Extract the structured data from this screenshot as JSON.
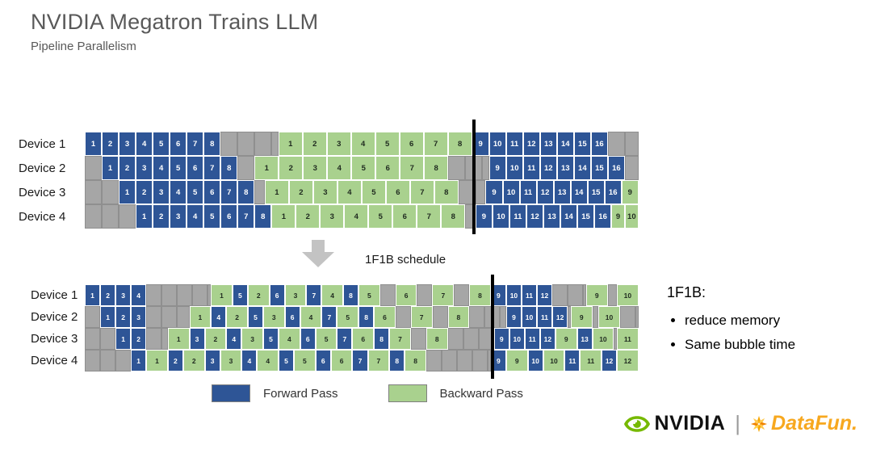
{
  "slide": {
    "title": "NVIDIA Megatron Trains LLM",
    "subtitle": "Pipeline Parallelism"
  },
  "arrow_label": "1F1B schedule",
  "notes": {
    "heading": "1F1B:",
    "bullets": [
      "reduce memory",
      "Same bubble time"
    ]
  },
  "legend": [
    {
      "label": "Forward Pass",
      "color": "#2E5596"
    },
    {
      "label": "Backward Pass",
      "color": "#A9D18E"
    }
  ],
  "colors": {
    "forward": "#2E5596",
    "backward": "#A9D18E",
    "idle": "#A6A6A6",
    "idle_border": "#8F8F8F",
    "flush_line": "#000000"
  },
  "footer": {
    "nvidia": "NVIDIA",
    "separator": "|",
    "datafun": "DataFun.",
    "nvidia_logo_color": "#76B900",
    "datafun_color": "#F7A600"
  },
  "icons": [
    "down-arrow-icon",
    "nvidia-eye-icon",
    "datafun-sparkle-icon"
  ],
  "chart_data": [
    {
      "type": "gantt-schedule",
      "name": "default pipeline schedule (before 1F1B)",
      "cell_legend": {
        "f": "Forward Pass",
        "b": "Backward Pass",
        "i": "idle bubble"
      },
      "total_units": 32.6,
      "flush_line_units": 22.8,
      "default_widths": {
        "f": 1,
        "b": 1.425,
        "i": 1
      },
      "rows": [
        {
          "device": "Device 1",
          "cells": [
            "f1",
            "f2",
            "f3",
            "f4",
            "f5",
            "f6",
            "f7",
            "f8",
            "i:3.4",
            "b1",
            "b2",
            "b3",
            "b4",
            "b5",
            "b6",
            "b7",
            "b8",
            "f9",
            "f10",
            "f11",
            "f12",
            "f13",
            "f14",
            "f15",
            "f16",
            "i:1.8"
          ]
        },
        {
          "device": "Device 2",
          "cells": [
            "i:1",
            "f1",
            "f2",
            "f3",
            "f4",
            "f5",
            "f6",
            "f7",
            "f8",
            "i:1",
            "b1",
            "b2",
            "b3",
            "b4",
            "b5",
            "b6",
            "b7",
            "b8",
            "i:2.4",
            "f9",
            "f10",
            "f11",
            "f12",
            "f13",
            "f14",
            "f15",
            "f16",
            "i:0.8"
          ]
        },
        {
          "device": "Device 3",
          "cells": [
            "i:2",
            "f1",
            "f2",
            "f3",
            "f4",
            "f5",
            "f6",
            "f7",
            "f8",
            "i:0.6",
            "b1",
            "b2",
            "b3",
            "b4",
            "b5",
            "b6",
            "b7",
            "b8",
            "i:1.6",
            "f9",
            "f10",
            "f11",
            "f12",
            "f13",
            "f14",
            "f15",
            "f16",
            "b9:1"
          ]
        },
        {
          "device": "Device 4",
          "cells": [
            "i:3",
            "f1",
            "f2",
            "f3",
            "f4",
            "f5",
            "f6",
            "f7",
            "f8",
            "b1",
            "b2",
            "b3",
            "b4",
            "b5",
            "b6",
            "b7",
            "b8",
            "i:0.6",
            "f9",
            "f10",
            "f11",
            "f12",
            "f13",
            "f14",
            "f15",
            "f16",
            "b9:0.8",
            "b10:0.8"
          ]
        }
      ]
    },
    {
      "type": "gantt-schedule",
      "name": "1F1B schedule",
      "cell_legend": {
        "f": "Forward Pass",
        "b": "Backward Pass",
        "i": "idle bubble"
      },
      "total_units": 36,
      "flush_line_units": 26.4,
      "default_widths": {
        "f": 1,
        "b": 1.4,
        "i": 1
      },
      "rows": [
        {
          "device": "Device 1",
          "cells": [
            "f1",
            "f2",
            "f3",
            "f4",
            "i:4.2",
            "b1",
            "f5",
            "b2",
            "f6",
            "b3",
            "f7",
            "b4",
            "f8",
            "b5",
            "i:1",
            "b6",
            "i:1",
            "b7",
            "i:1",
            "b8",
            "f9",
            "f10",
            "f11",
            "f12",
            "i:2.2",
            "b9",
            "i:0.6",
            "b10"
          ]
        },
        {
          "device": "Device 2",
          "cells": [
            "i:1",
            "f1",
            "f2",
            "f3",
            "i:2.8",
            "b1",
            "f4",
            "b2",
            "f5",
            "b3",
            "f6",
            "b4",
            "f7",
            "b5",
            "f8",
            "b6",
            "i:1",
            "b7",
            "i:1",
            "b8",
            "i:2.4",
            "f9",
            "f10",
            "f11",
            "f12",
            "i:0.2",
            "b9",
            "i:0.4",
            "b10",
            "i:1.2"
          ]
        },
        {
          "device": "Device 3",
          "cells": [
            "i:2",
            "f1",
            "f2",
            "i:1.4",
            "b1",
            "f3",
            "b2",
            "f4",
            "b3",
            "f5",
            "b4",
            "f6",
            "b5",
            "f7",
            "b6",
            "f8",
            "b7",
            "i:1",
            "b8",
            "i:3",
            "f9",
            "f10",
            "f11",
            "f12",
            "b9",
            "f13",
            "b10",
            "i:0.2",
            "b11"
          ]
        },
        {
          "device": "Device 4",
          "cells": [
            "i:3",
            "f1",
            "b1",
            "f2",
            "b2",
            "f3",
            "b3",
            "f4",
            "b4",
            "f5",
            "b5",
            "f6",
            "b6",
            "f7",
            "b7",
            "f8",
            "b8",
            "i:4.2",
            "f9",
            "b9",
            "f10",
            "b10",
            "f11",
            "b11",
            "f12",
            "b12"
          ]
        }
      ]
    }
  ]
}
